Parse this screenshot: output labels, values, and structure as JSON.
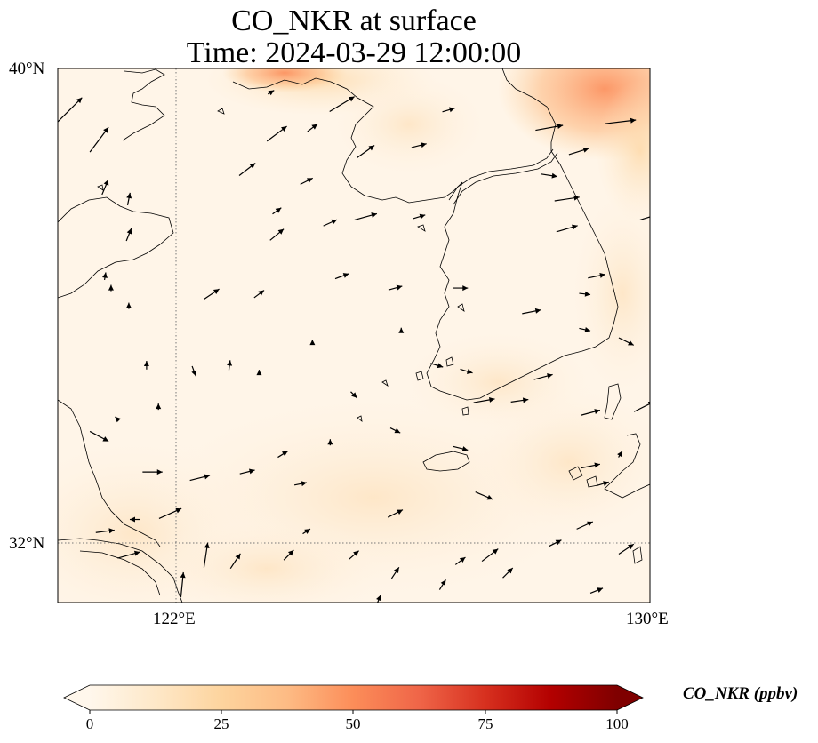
{
  "title": {
    "line1": "CO_NKR at surface",
    "line2": "Time: 2024-03-29 12:00:00"
  },
  "axes": {
    "lat_top_label": "40°N",
    "lat_bottom_label": "32°N",
    "lon_left_label": "122°E",
    "lon_right_label": "130°E",
    "lon_range": [
      120,
      130
    ],
    "lat_range": [
      31,
      40
    ]
  },
  "colorbar": {
    "label": "CO_NKR (ppbv)",
    "ticks": [
      "0",
      "25",
      "50",
      "75",
      "100"
    ],
    "range": [
      0,
      100
    ],
    "extend": "both",
    "colormap": "OrRd",
    "colors": [
      "#fff7ec",
      "#fee8c8",
      "#fdd49e",
      "#fdbb84",
      "#fc8d59",
      "#ef6548",
      "#d7301f",
      "#b30000",
      "#7f0000"
    ]
  },
  "field": {
    "variable": "CO_NKR",
    "level": "surface",
    "description": "mostly low values (0-15 ppbv); higher values (up to ~40 ppbv) along the northern edge near 40°N and northeast corner"
  },
  "wind_vectors": [
    {
      "lon": 120.2,
      "lat": 39.3,
      "u": 2,
      "v": 2
    },
    {
      "lon": 120.7,
      "lat": 38.8,
      "u": 1.5,
      "v": 2
    },
    {
      "lon": 120.8,
      "lat": 38.0,
      "u": 0.5,
      "v": 1.2
    },
    {
      "lon": 121.2,
      "lat": 37.8,
      "u": 0.2,
      "v": 1
    },
    {
      "lon": 121.2,
      "lat": 37.2,
      "u": 0.4,
      "v": 1
    },
    {
      "lon": 120.8,
      "lat": 36.5,
      "u": 0.1,
      "v": 0.6
    },
    {
      "lon": 121.2,
      "lat": 36.0,
      "u": 0,
      "v": 0.5
    },
    {
      "lon": 121.5,
      "lat": 35.0,
      "u": 0,
      "v": 0.7
    },
    {
      "lon": 121.7,
      "lat": 34.3,
      "u": 0,
      "v": 0.5
    },
    {
      "lon": 120.7,
      "lat": 33.8,
      "u": 1.5,
      "v": -0.8
    },
    {
      "lon": 121.6,
      "lat": 33.2,
      "u": 1.6,
      "v": 0
    },
    {
      "lon": 120.8,
      "lat": 32.2,
      "u": 1.5,
      "v": 0.2
    },
    {
      "lon": 121.2,
      "lat": 31.8,
      "u": 1.8,
      "v": 0.5
    },
    {
      "lon": 122.1,
      "lat": 31.3,
      "u": 0.2,
      "v": 2
    },
    {
      "lon": 122.5,
      "lat": 31.8,
      "u": 0.3,
      "v": 2
    },
    {
      "lon": 121.9,
      "lat": 32.5,
      "u": 1.8,
      "v": 0.8
    },
    {
      "lon": 122.4,
      "lat": 33.1,
      "u": 1.6,
      "v": 0.4
    },
    {
      "lon": 123.2,
      "lat": 33.2,
      "u": 1.2,
      "v": 0.3
    },
    {
      "lon": 123.8,
      "lat": 33.5,
      "u": 0.8,
      "v": 0.5
    },
    {
      "lon": 122.3,
      "lat": 34.9,
      "u": 0.3,
      "v": -0.8
    },
    {
      "lon": 122.9,
      "lat": 35.0,
      "u": 0.1,
      "v": 0.8
    },
    {
      "lon": 123.4,
      "lat": 34.9,
      "u": 0,
      "v": 0.2
    },
    {
      "lon": 122.6,
      "lat": 36.2,
      "u": 1.2,
      "v": 0.8
    },
    {
      "lon": 123.4,
      "lat": 36.2,
      "u": 0.8,
      "v": 0.6
    },
    {
      "lon": 123.7,
      "lat": 37.6,
      "u": 0.7,
      "v": 0.5
    },
    {
      "lon": 123.7,
      "lat": 37.2,
      "u": 1.1,
      "v": 0.9
    },
    {
      "lon": 123.2,
      "lat": 38.3,
      "u": 1.3,
      "v": 1
    },
    {
      "lon": 123.7,
      "lat": 38.9,
      "u": 1.6,
      "v": 1.2
    },
    {
      "lon": 124.2,
      "lat": 38.1,
      "u": 1,
      "v": 0.5
    },
    {
      "lon": 124.3,
      "lat": 39.0,
      "u": 0.8,
      "v": 0.6
    },
    {
      "lon": 123.6,
      "lat": 39.6,
      "u": 0.5,
      "v": 0.3
    },
    {
      "lon": 124.8,
      "lat": 39.4,
      "u": 2,
      "v": 1.2
    },
    {
      "lon": 125.2,
      "lat": 38.6,
      "u": 1.4,
      "v": 1
    },
    {
      "lon": 126.1,
      "lat": 38.7,
      "u": 1.2,
      "v": 0.3
    },
    {
      "lon": 126.6,
      "lat": 39.3,
      "u": 1,
      "v": 0.3
    },
    {
      "lon": 125.7,
      "lat": 36.3,
      "u": 1.1,
      "v": 0.3
    },
    {
      "lon": 124.6,
      "lat": 37.4,
      "u": 1.1,
      "v": 0.5
    },
    {
      "lon": 124.8,
      "lat": 36.5,
      "u": 1.1,
      "v": 0.4
    },
    {
      "lon": 125.2,
      "lat": 37.5,
      "u": 1.8,
      "v": 0.5
    },
    {
      "lon": 126.1,
      "lat": 37.5,
      "u": 1,
      "v": 0.3
    },
    {
      "lon": 125.8,
      "lat": 35.6,
      "u": 0,
      "v": 0.3
    },
    {
      "lon": 124.3,
      "lat": 35.4,
      "u": 0,
      "v": 0.3
    },
    {
      "lon": 125.0,
      "lat": 34.5,
      "u": 0.5,
      "v": -0.5
    },
    {
      "lon": 124.6,
      "lat": 33.7,
      "u": 0,
      "v": 0.5
    },
    {
      "lon": 125.7,
      "lat": 33.9,
      "u": 0.8,
      "v": -0.4
    },
    {
      "lon": 126.8,
      "lat": 36.3,
      "u": 1.2,
      "v": 0
    },
    {
      "lon": 126.4,
      "lat": 35.0,
      "u": 1,
      "v": -0.3
    },
    {
      "lon": 126.9,
      "lat": 34.9,
      "u": 1,
      "v": -0.3
    },
    {
      "lon": 126.8,
      "lat": 33.6,
      "u": 1.2,
      "v": -0.3
    },
    {
      "lon": 127.2,
      "lat": 32.8,
      "u": 1.4,
      "v": -0.6
    },
    {
      "lon": 127.3,
      "lat": 31.8,
      "u": 1.3,
      "v": 1
    },
    {
      "lon": 127.6,
      "lat": 31.5,
      "u": 0.8,
      "v": 0.8
    },
    {
      "lon": 126.8,
      "lat": 31.7,
      "u": 0.8,
      "v": 0.6
    },
    {
      "lon": 125.7,
      "lat": 31.5,
      "u": 0.6,
      "v": 0.9
    },
    {
      "lon": 124.2,
      "lat": 32.2,
      "u": 0.6,
      "v": 0.4
    },
    {
      "lon": 123.9,
      "lat": 31.8,
      "u": 0.8,
      "v": 0.8
    },
    {
      "lon": 123.0,
      "lat": 31.7,
      "u": 0.8,
      "v": 1.2
    },
    {
      "lon": 125.0,
      "lat": 31.8,
      "u": 0.8,
      "v": 0.7
    },
    {
      "lon": 125.7,
      "lat": 32.5,
      "u": 1.2,
      "v": 0.6
    },
    {
      "lon": 124.1,
      "lat": 33.0,
      "u": 1,
      "v": 0.2
    },
    {
      "lon": 127.2,
      "lat": 34.4,
      "u": 1.7,
      "v": 0.3
    },
    {
      "lon": 128.2,
      "lat": 34.8,
      "u": 1.5,
      "v": 0.4
    },
    {
      "lon": 129.6,
      "lat": 35.4,
      "u": 1.2,
      "v": -0.6
    },
    {
      "lon": 128.0,
      "lat": 35.9,
      "u": 1.5,
      "v": 0.3
    },
    {
      "lon": 128.9,
      "lat": 35.6,
      "u": 0.9,
      "v": -0.2
    },
    {
      "lon": 128.9,
      "lat": 36.2,
      "u": 0.9,
      "v": -0.1
    },
    {
      "lon": 129.1,
      "lat": 36.5,
      "u": 1.4,
      "v": 0.3
    },
    {
      "lon": 128.6,
      "lat": 37.3,
      "u": 1.7,
      "v": 0.5
    },
    {
      "lon": 128.6,
      "lat": 37.8,
      "u": 2,
      "v": 0.3
    },
    {
      "lon": 128.8,
      "lat": 38.6,
      "u": 1.6,
      "v": 0.5
    },
    {
      "lon": 129.5,
      "lat": 39.1,
      "u": 2.5,
      "v": 0.3
    },
    {
      "lon": 128.3,
      "lat": 39.0,
      "u": 2.2,
      "v": 0.4
    },
    {
      "lon": 128.3,
      "lat": 38.2,
      "u": 1.3,
      "v": -0.2
    },
    {
      "lon": 127.8,
      "lat": 34.4,
      "u": 1.4,
      "v": 0.2
    },
    {
      "lon": 129.0,
      "lat": 34.2,
      "u": 1.5,
      "v": 0.4
    },
    {
      "lon": 129.9,
      "lat": 34.3,
      "u": 1.6,
      "v": 0.8
    },
    {
      "lon": 129.2,
      "lat": 33.0,
      "u": 1,
      "v": 0.3
    },
    {
      "lon": 128.9,
      "lat": 32.3,
      "u": 1.3,
      "v": 0.6
    },
    {
      "lon": 128.4,
      "lat": 32.0,
      "u": 1,
      "v": 0.5
    },
    {
      "lon": 129.6,
      "lat": 31.9,
      "u": 1.2,
      "v": 0.8
    },
    {
      "lon": 129.1,
      "lat": 31.2,
      "u": 1,
      "v": 0.4
    },
    {
      "lon": 129.0,
      "lat": 33.3,
      "u": 1.5,
      "v": 0.3
    },
    {
      "lon": 130.0,
      "lat": 37.5,
      "u": 1.6,
      "v": 0.5
    },
    {
      "lon": 129.5,
      "lat": 33.5,
      "u": 0.3,
      "v": 0.5
    },
    {
      "lon": 126.5,
      "lat": 31.3,
      "u": 0.5,
      "v": 0.8
    },
    {
      "lon": 125.4,
      "lat": 31.0,
      "u": 0.5,
      "v": 1.2
    },
    {
      "lon": 121.0,
      "lat": 34.1,
      "u": -0.3,
      "v": 0.3
    },
    {
      "lon": 121.3,
      "lat": 32.4,
      "u": -0.8,
      "v": 0
    },
    {
      "lon": 120.9,
      "lat": 36.3,
      "u": 0,
      "v": 0.5
    }
  ],
  "north_korea_shore": "irregular coastline with many islands",
  "features": {
    "shandong_coast": true,
    "liaodong_peninsula": true,
    "korean_peninsula": true,
    "jeju_island": true,
    "tsushima": true,
    "dmz_boundary": true
  }
}
